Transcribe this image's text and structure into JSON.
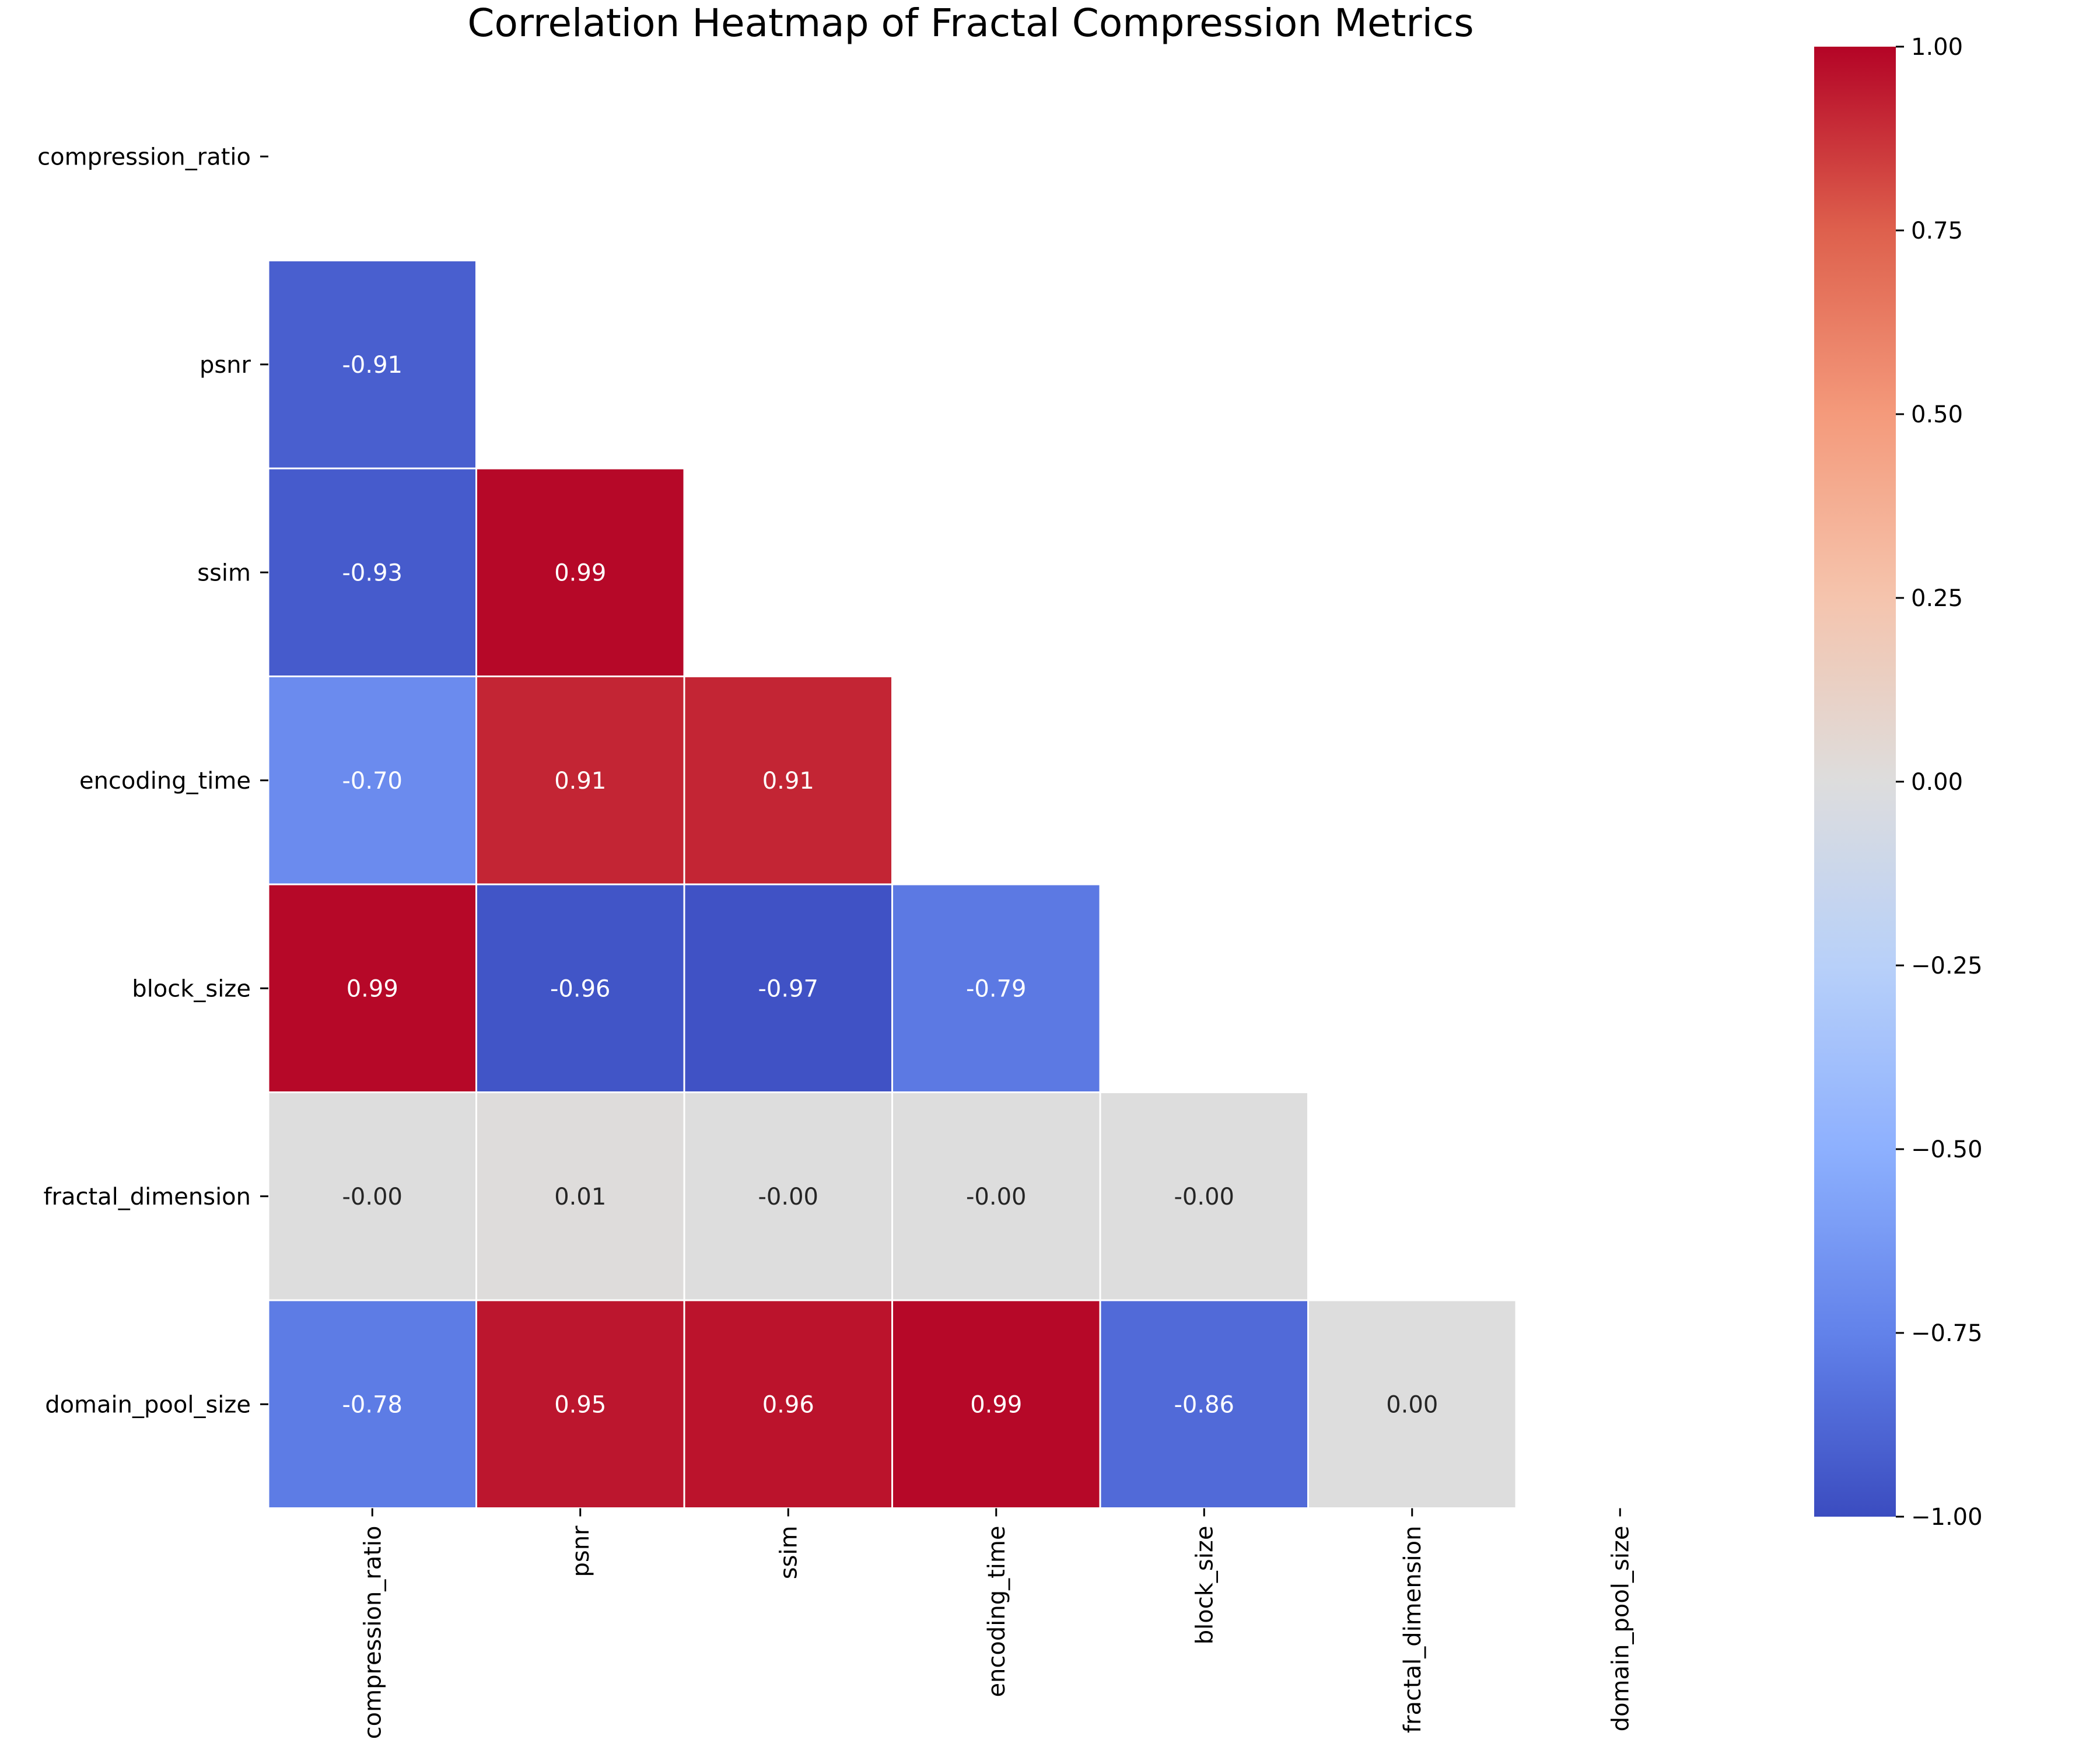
{
  "chart_data": {
    "type": "heatmap",
    "title": "Correlation Heatmap of Fractal Compression Metrics",
    "variables": [
      "compression_ratio",
      "psnr",
      "ssim",
      "encoding_time",
      "block_size",
      "fractal_dimension",
      "domain_pool_size"
    ],
    "mask": "upper-triangle-including-diagonal",
    "cells": [
      {
        "row": "psnr",
        "col": "compression_ratio",
        "value": -0.91,
        "label": "-0.91"
      },
      {
        "row": "ssim",
        "col": "compression_ratio",
        "value": -0.93,
        "label": "-0.93"
      },
      {
        "row": "ssim",
        "col": "psnr",
        "value": 0.99,
        "label": "0.99"
      },
      {
        "row": "encoding_time",
        "col": "compression_ratio",
        "value": -0.7,
        "label": "-0.70"
      },
      {
        "row": "encoding_time",
        "col": "psnr",
        "value": 0.91,
        "label": "0.91"
      },
      {
        "row": "encoding_time",
        "col": "ssim",
        "value": 0.91,
        "label": "0.91"
      },
      {
        "row": "block_size",
        "col": "compression_ratio",
        "value": 0.99,
        "label": "0.99"
      },
      {
        "row": "block_size",
        "col": "psnr",
        "value": -0.96,
        "label": "-0.96"
      },
      {
        "row": "block_size",
        "col": "ssim",
        "value": -0.97,
        "label": "-0.97"
      },
      {
        "row": "block_size",
        "col": "encoding_time",
        "value": -0.79,
        "label": "-0.79"
      },
      {
        "row": "fractal_dimension",
        "col": "compression_ratio",
        "value": -0.0,
        "label": "-0.00"
      },
      {
        "row": "fractal_dimension",
        "col": "psnr",
        "value": 0.01,
        "label": "0.01"
      },
      {
        "row": "fractal_dimension",
        "col": "ssim",
        "value": -0.0,
        "label": "-0.00"
      },
      {
        "row": "fractal_dimension",
        "col": "encoding_time",
        "value": -0.0,
        "label": "-0.00"
      },
      {
        "row": "fractal_dimension",
        "col": "block_size",
        "value": -0.0,
        "label": "-0.00"
      },
      {
        "row": "domain_pool_size",
        "col": "compression_ratio",
        "value": -0.78,
        "label": "-0.78"
      },
      {
        "row": "domain_pool_size",
        "col": "psnr",
        "value": 0.95,
        "label": "0.95"
      },
      {
        "row": "domain_pool_size",
        "col": "ssim",
        "value": 0.96,
        "label": "0.96"
      },
      {
        "row": "domain_pool_size",
        "col": "encoding_time",
        "value": 0.99,
        "label": "0.99"
      },
      {
        "row": "domain_pool_size",
        "col": "block_size",
        "value": -0.86,
        "label": "-0.86"
      },
      {
        "row": "domain_pool_size",
        "col": "fractal_dimension",
        "value": 0.0,
        "label": "0.00"
      }
    ],
    "colormap": "coolwarm",
    "colorbar": {
      "range": [
        -1.0,
        1.0
      ],
      "ticks": [
        -1.0,
        -0.75,
        -0.5,
        -0.25,
        0.0,
        0.25,
        0.5,
        0.75,
        1.0
      ],
      "tick_labels": [
        "−1.00",
        "−0.75",
        "−0.50",
        "−0.25",
        "0.00",
        "0.25",
        "0.50",
        "0.75",
        "1.00"
      ],
      "placement": "right"
    },
    "grid": false
  }
}
